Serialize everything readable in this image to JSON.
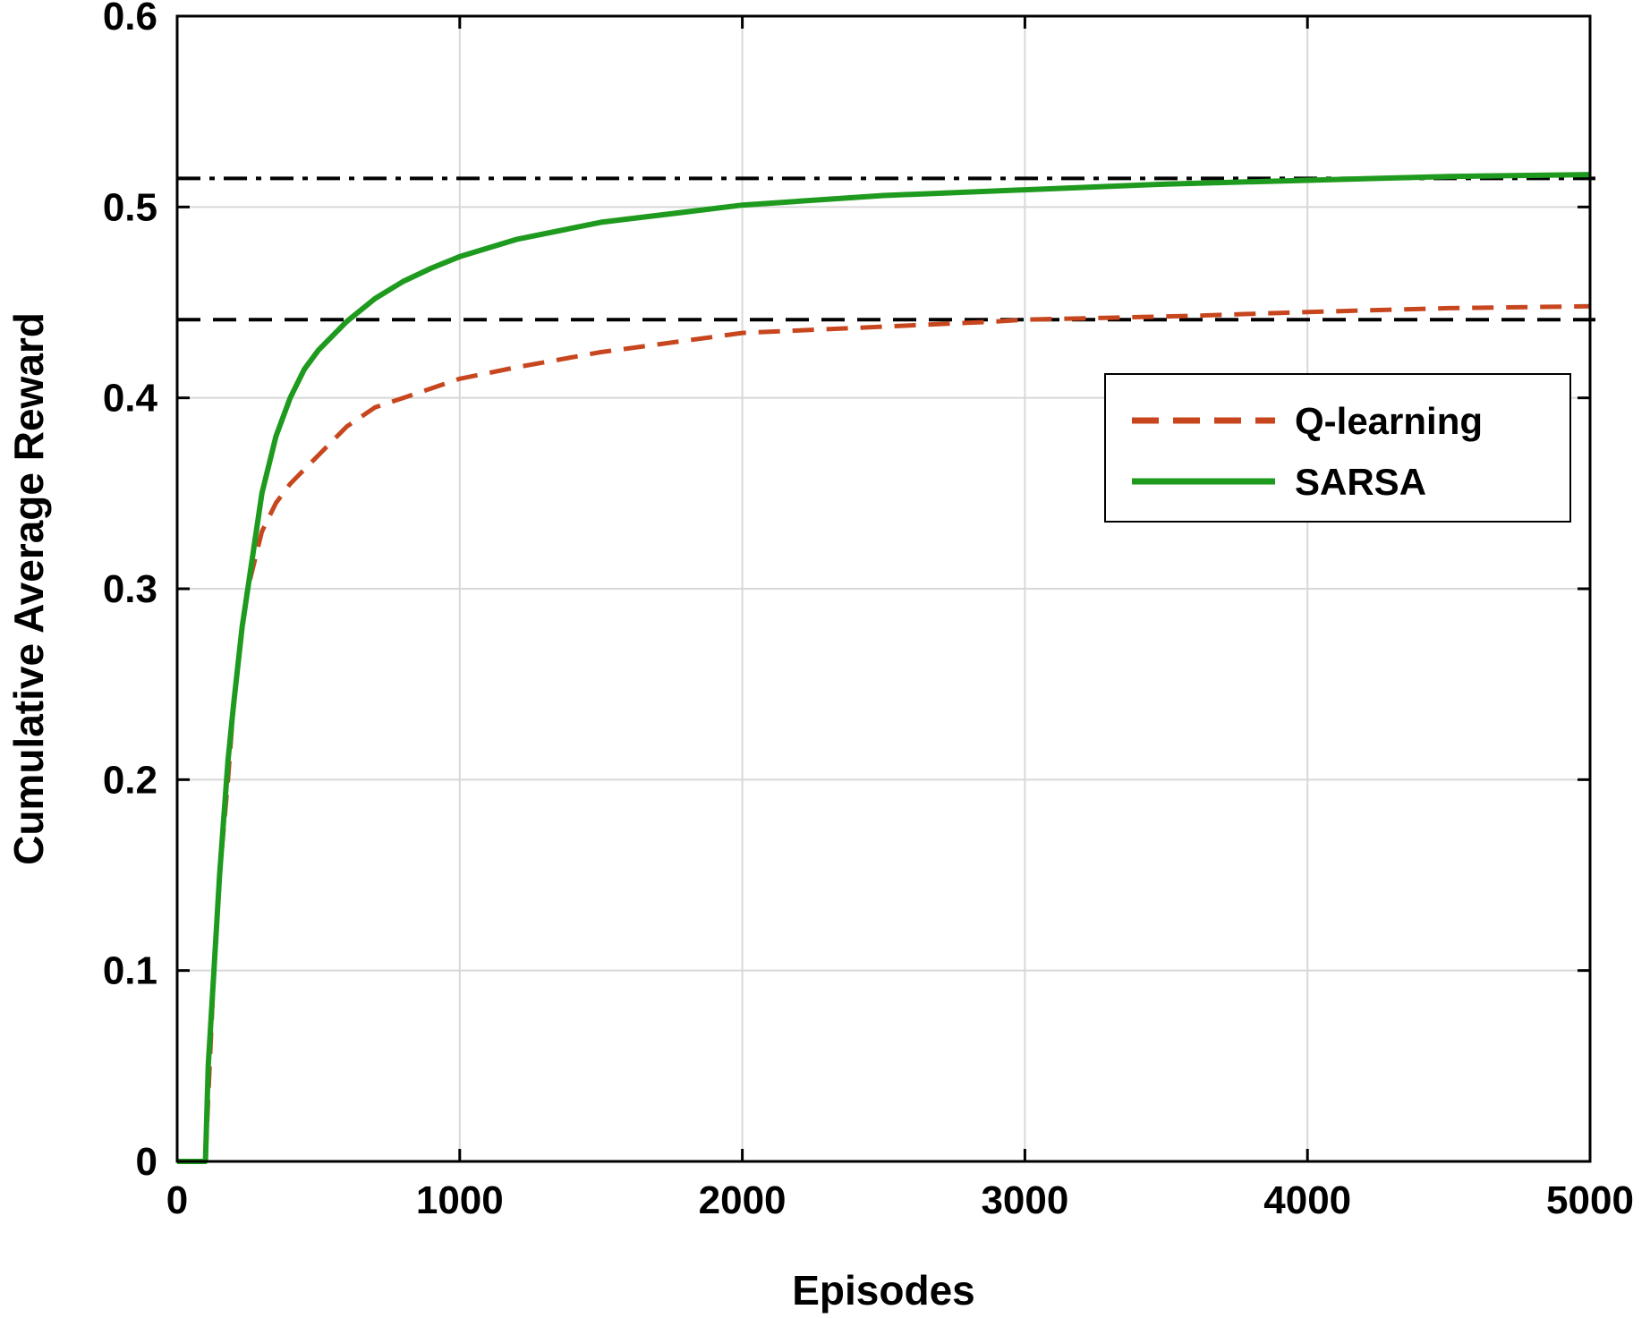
{
  "chart_data": {
    "type": "line",
    "xlabel": "Episodes",
    "ylabel": "Cumulative Average Reward",
    "xlim": [
      0,
      5000
    ],
    "ylim": [
      0,
      0.6
    ],
    "xticks": [
      0,
      1000,
      2000,
      3000,
      4000,
      5000
    ],
    "yticks": [
      0,
      0.1,
      0.2,
      0.3,
      0.4,
      0.5,
      0.6
    ],
    "xtick_labels": [
      "0",
      "1000",
      "2000",
      "3000",
      "4000",
      "5000"
    ],
    "ytick_labels": [
      "0",
      "0.1",
      "0.2",
      "0.3",
      "0.4",
      "0.5",
      "0.6"
    ],
    "grid": true,
    "legend_position": "upper-right",
    "series": [
      {
        "name": "Q-learning",
        "color": "#c8461e",
        "style": "dashed",
        "x": [
          0,
          100,
          115,
          130,
          150,
          180,
          200,
          230,
          250,
          300,
          350,
          400,
          500,
          600,
          700,
          800,
          1000,
          1200,
          1500,
          1800,
          2000,
          2300,
          2600,
          2900,
          3000,
          3300,
          3600,
          4000,
          4500,
          5000
        ],
        "y": [
          0,
          0,
          0.05,
          0.1,
          0.15,
          0.2,
          0.24,
          0.28,
          0.3,
          0.33,
          0.345,
          0.355,
          0.37,
          0.385,
          0.395,
          0.4,
          0.41,
          0.416,
          0.424,
          0.43,
          0.434,
          0.436,
          0.438,
          0.44,
          0.441,
          0.442,
          0.443,
          0.445,
          0.447,
          0.448
        ]
      },
      {
        "name": "SARSA",
        "color": "#1e9a1e",
        "style": "solid",
        "x": [
          0,
          100,
          110,
          130,
          150,
          180,
          200,
          230,
          260,
          300,
          350,
          400,
          450,
          500,
          600,
          700,
          800,
          900,
          1000,
          1200,
          1500,
          2000,
          2500,
          3000,
          3500,
          4000,
          4500,
          5000
        ],
        "y": [
          0,
          0,
          0.05,
          0.1,
          0.15,
          0.21,
          0.24,
          0.28,
          0.31,
          0.35,
          0.38,
          0.4,
          0.415,
          0.425,
          0.44,
          0.452,
          0.461,
          0.468,
          0.474,
          0.483,
          0.492,
          0.501,
          0.506,
          0.509,
          0.512,
          0.514,
          0.516,
          0.517
        ]
      }
    ],
    "reference_lines": [
      {
        "y": 0.515,
        "style": "dash-dot",
        "color": "#000000"
      },
      {
        "y": 0.441,
        "style": "dashed",
        "color": "#000000"
      }
    ]
  }
}
